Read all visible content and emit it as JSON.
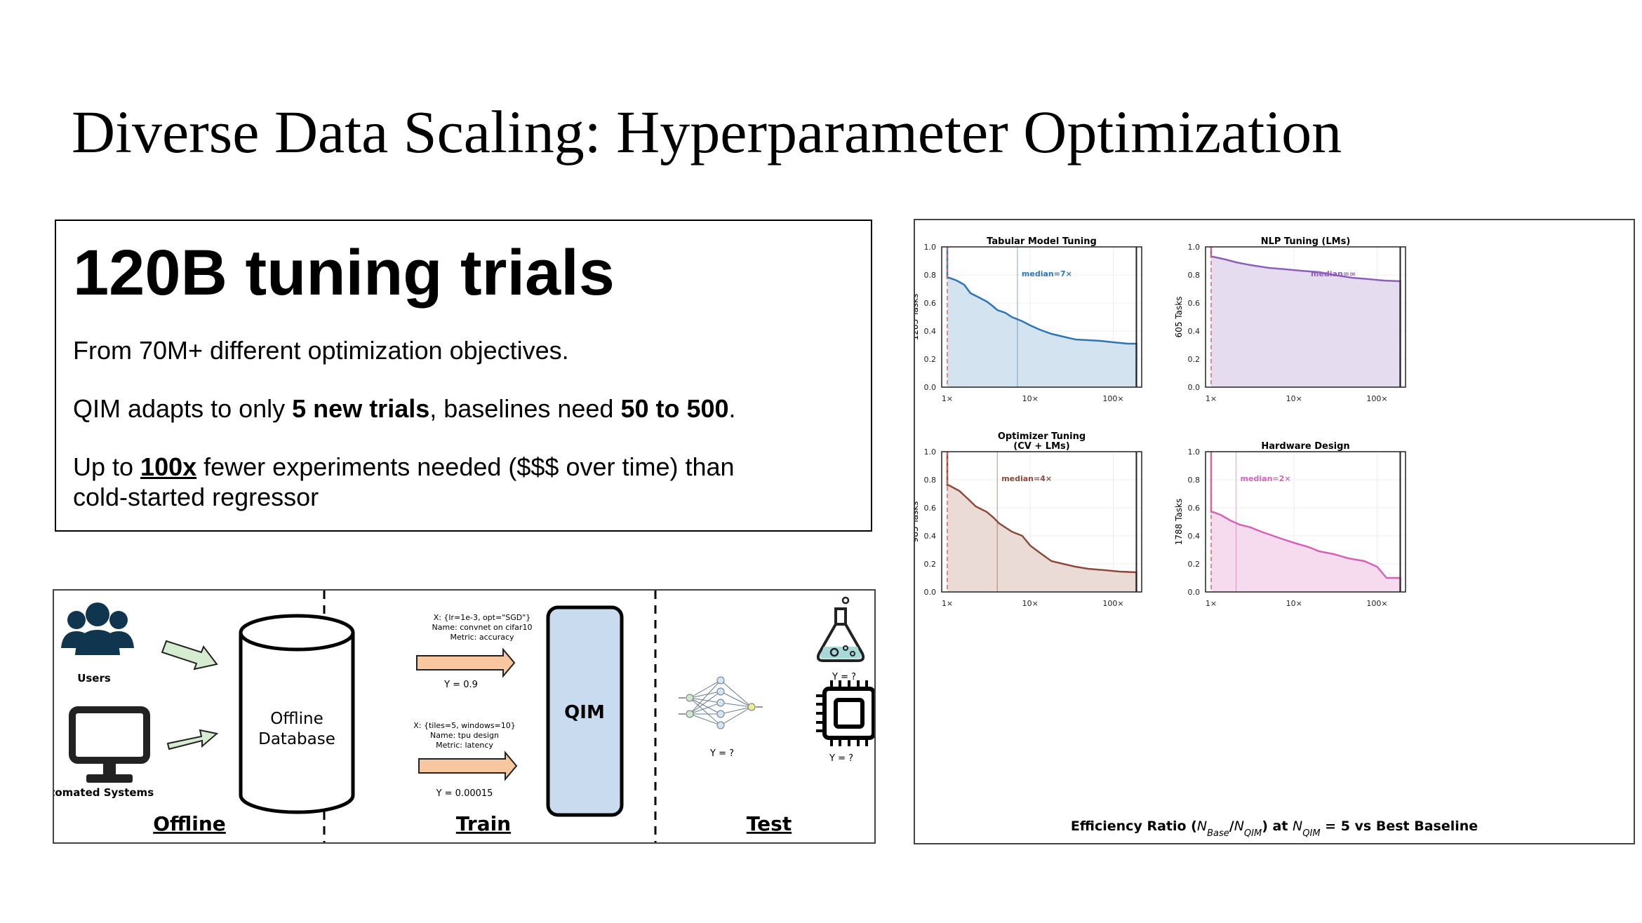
{
  "slide": {
    "title": "Diverse Data Scaling: Hyperparameter Optimization"
  },
  "info": {
    "headline": "120B tuning trials",
    "line1": "From 70M+ different optimization objectives.",
    "line2_pre": "QIM adapts to only ",
    "line2_bold1": "5 new trials",
    "line2_mid": ", baselines need ",
    "line2_bold2": "50 to 500",
    "line2_post": ".",
    "line3_pre": "Up to ",
    "line3_bold": "100x",
    "line3_post": " fewer experiments needed ($$$ over time) than",
    "line4": "cold-started regressor"
  },
  "diagram": {
    "users_label": "Users",
    "automated_label": "Automated Systems",
    "db_label1": "Offline",
    "db_label2": "Database",
    "ex1_line1": "X: {lr=1e-3, opt=\"SGD\"}",
    "ex1_line2": "Name: convnet on cifar10",
    "ex1_line3": "Metric: accuracy",
    "ex1_y": "Y = 0.9",
    "ex2_line1": "X: {tiles=5, windows=10}",
    "ex2_line2": "Name: tpu design",
    "ex2_line3": "Metric: latency",
    "ex2_y": "Y = 0.00015",
    "model_label": "QIM",
    "nn_y": "Y = ?",
    "flask_y": "Y = ?",
    "chip_y": "Y = ?",
    "section_offline": "Offline",
    "section_train": "Train",
    "section_test": "Test"
  },
  "chart_data": [
    {
      "type": "area",
      "title": "Tabular Model Tuning",
      "ylabel": "1283 Tasks",
      "median_label": "median=7×",
      "median": 7,
      "color": "#2e75b6",
      "fill": "#d3e3ef",
      "x": [
        1,
        1.05,
        1.3,
        1.6,
        1.9,
        2.4,
        3,
        3.5,
        4,
        5,
        6,
        8,
        10,
        13,
        18,
        25,
        35,
        50,
        70,
        100,
        150,
        190
      ],
      "y": [
        0.78,
        0.78,
        0.76,
        0.73,
        0.67,
        0.64,
        0.61,
        0.58,
        0.55,
        0.53,
        0.5,
        0.47,
        0.44,
        0.41,
        0.38,
        0.36,
        0.34,
        0.335,
        0.33,
        0.32,
        0.31,
        0.31
      ]
    },
    {
      "type": "area",
      "title": "NLP Tuning (LMs)",
      "ylabel": "605 Tasks",
      "median_label": "median=∞",
      "median": null,
      "color": "#8e5fb8",
      "fill": "#e6dcf0",
      "x": [
        1,
        1.05,
        1.5,
        2,
        3,
        5,
        8,
        12,
        20,
        30,
        50,
        80,
        120,
        190
      ],
      "y": [
        0.93,
        0.93,
        0.91,
        0.89,
        0.87,
        0.85,
        0.84,
        0.83,
        0.82,
        0.8,
        0.78,
        0.77,
        0.76,
        0.755
      ]
    },
    {
      "type": "area",
      "title": "Optimizer Tuning\n(CV + LMs)",
      "ylabel": "985 Tasks",
      "median_label": "median=4×",
      "median": 4,
      "color": "#8b4a3c",
      "fill": "#eadbd7",
      "x": [
        1,
        1.05,
        1.4,
        1.8,
        2.2,
        3,
        3.6,
        4.2,
        5,
        6,
        8,
        10,
        13,
        18,
        25,
        35,
        50,
        80,
        120,
        190
      ],
      "y": [
        0.76,
        0.76,
        0.72,
        0.66,
        0.61,
        0.57,
        0.53,
        0.49,
        0.46,
        0.43,
        0.4,
        0.33,
        0.28,
        0.22,
        0.2,
        0.18,
        0.165,
        0.155,
        0.145,
        0.14
      ]
    },
    {
      "type": "area",
      "title": "Hardware Design",
      "ylabel": "1788 Tasks",
      "median_label": "median=2×",
      "median": 2,
      "color": "#d462b8",
      "fill": "#f6dbef",
      "x": [
        1,
        1.05,
        1.3,
        1.7,
        2.2,
        3,
        4,
        5,
        7,
        10,
        15,
        20,
        30,
        45,
        70,
        100,
        130,
        190
      ],
      "y": [
        0.57,
        0.57,
        0.55,
        0.51,
        0.48,
        0.46,
        0.43,
        0.41,
        0.38,
        0.35,
        0.32,
        0.29,
        0.27,
        0.24,
        0.22,
        0.18,
        0.1,
        0.1
      ]
    }
  ],
  "charts_shared": {
    "x_ticks": [
      "1×",
      "10×",
      "100×"
    ],
    "y_ticks": [
      "0.0",
      "0.2",
      "0.4",
      "0.6",
      "0.8",
      "1.0"
    ],
    "xlabel_pre": "Efficiency Ratio (",
    "xlabel_N": "N",
    "xlabel_sub1": "Base",
    "xlabel_slash": "/",
    "xlabel_sub2": "QIM",
    "xlabel_mid": ") at ",
    "xlabel_N2": "N",
    "xlabel_sub3": "QIM",
    "xlabel_post": " = 5 vs Best Baseline"
  }
}
